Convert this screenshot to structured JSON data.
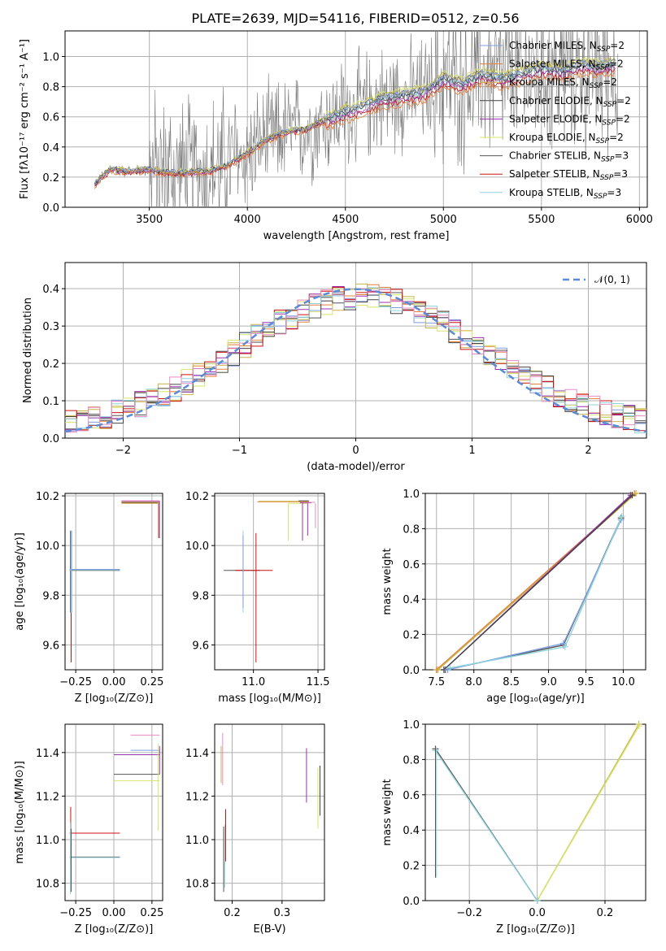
{
  "title": "PLATE=2639, MJD=54116, FIBERID=0512, z=0.56",
  "series_colors": {
    "Chabrier MILES": "#7f9fe0",
    "Salpeter MILES": "#e67f3a",
    "Kroupa MILES": "#c9b24a",
    "Chabrier ELODIE": "#444444",
    "Salpeter ELODIE": "#9b30b0",
    "Kroupa ELODIE": "#d6e46a",
    "Chabrier STELIB": "#555555",
    "Salpeter STELIB": "#cc1111",
    "Kroupa STELIB": "#8fd3dc",
    "Pink": "#e88cc4",
    "Observed": "#7a7a7a"
  },
  "chart_data": [
    {
      "id": "spectrum",
      "type": "line",
      "xlabel": "wavelength [Angstrom, rest frame]",
      "ylabel": "Flux [fλ10⁻¹⁷ erg cm⁻² s⁻¹ A⁻¹]",
      "xlim": [
        3070,
        6040
      ],
      "ylim": [
        0,
        1.17
      ],
      "xticks": [
        "3500",
        "4000",
        "4500",
        "5000",
        "5500",
        "6000"
      ],
      "yticks": [
        "0.0",
        "0.2",
        "0.4",
        "0.6",
        "0.8",
        "1.0"
      ],
      "legend": [
        {
          "label": "Chabrier MILES, N",
          "sub": "SSP",
          "tail": "=2"
        },
        {
          "label": "Salpeter MILES, N",
          "sub": "SSP",
          "tail": "=2"
        },
        {
          "label": "Kroupa MILES, N",
          "sub": "SSP",
          "tail": "=2"
        },
        {
          "label": "Chabrier ELODIE, N",
          "sub": "SSP",
          "tail": "=2"
        },
        {
          "label": "Salpeter ELODIE, N",
          "sub": "SSP",
          "tail": "=2"
        },
        {
          "label": "Kroupa ELODIE, N",
          "sub": "SSP",
          "tail": "=2"
        },
        {
          "label": "Chabrier STELIB, N",
          "sub": "SSP",
          "tail": "=3"
        },
        {
          "label": "Salpeter STELIB, N",
          "sub": "SSP",
          "tail": "=3"
        },
        {
          "label": "Kroupa STELIB, N",
          "sub": "SSP",
          "tail": "=3"
        }
      ],
      "legend_placement": "upper-right",
      "model_curve": {
        "x": [
          3220,
          3300,
          3400,
          3500,
          3600,
          3700,
          3800,
          3900,
          4000,
          4100,
          4200,
          4300,
          4400,
          4500,
          4600,
          4700,
          4800,
          4900,
          5000,
          5100,
          5200,
          5300,
          5400,
          5500,
          5600,
          5700,
          5800,
          5880
        ],
        "y": [
          0.15,
          0.25,
          0.24,
          0.25,
          0.23,
          0.23,
          0.24,
          0.28,
          0.36,
          0.45,
          0.5,
          0.52,
          0.58,
          0.63,
          0.67,
          0.72,
          0.74,
          0.76,
          0.85,
          0.82,
          0.88,
          0.85,
          0.88,
          0.92,
          0.9,
          0.94,
          0.93,
          0.95
        ]
      }
    },
    {
      "id": "residuals",
      "type": "line",
      "xlabel": "(data-model)/error",
      "ylabel": "Normed distribution",
      "xlim": [
        -2.5,
        2.5
      ],
      "ylim": [
        0,
        0.47
      ],
      "xticks": [
        "−2",
        "−1",
        "0",
        "1",
        "2"
      ],
      "yticks": [
        "0.0",
        "0.1",
        "0.2",
        "0.3",
        "0.4"
      ],
      "legend": [
        {
          "label": "𝒩(0, 1)"
        }
      ],
      "normal_curve": {
        "mean": 0,
        "sigma": 1
      }
    },
    {
      "id": "age-vs-Z",
      "type": "line",
      "xlabel": "Z [log₁₀(Z/Z⊙)]",
      "ylabel": "age  [log₁₀(age/yr)]",
      "xlim": [
        -0.32,
        0.32
      ],
      "ylim": [
        9.5,
        10.21
      ],
      "xticks": [
        "−0.25",
        "0.00",
        "0.25"
      ],
      "yticks": [
        "9.6",
        "9.8",
        "10.0",
        "10.2"
      ]
    },
    {
      "id": "age-vs-mass",
      "type": "line",
      "xlabel": "mass [log₁₀(M/M⊙)]",
      "ylabel": "",
      "xlim": [
        10.7,
        11.55
      ],
      "ylim": [
        9.5,
        10.21
      ],
      "xticks": [
        "11.0",
        "11.5"
      ],
      "yticks": [
        "9.6",
        "9.8",
        "10.0",
        "10.2"
      ]
    },
    {
      "id": "weight-vs-age",
      "type": "line",
      "xlabel": "age  [log₁₀(age/yr)]",
      "ylabel": "mass weight",
      "xlim": [
        7.35,
        10.3
      ],
      "ylim": [
        0,
        1
      ],
      "xticks": [
        "7.5",
        "8.0",
        "8.5",
        "9.0",
        "9.5",
        "10.0"
      ],
      "yticks": [
        "0.0",
        "0.2",
        "0.4",
        "0.6",
        "0.8",
        "1.0"
      ],
      "series": [
        {
          "color": "#e67f3a",
          "x": [
            7.5,
            10.15
          ],
          "y": [
            0.0,
            1.0
          ]
        },
        {
          "color": "#c9b24a",
          "x": [
            7.52,
            10.17
          ],
          "y": [
            0.0,
            1.0
          ]
        },
        {
          "color": "#9b30b0",
          "x": [
            7.6,
            10.1
          ],
          "y": [
            0.0,
            0.99
          ]
        },
        {
          "color": "#444444",
          "x": [
            7.6,
            10.12
          ],
          "y": [
            0.0,
            0.99
          ]
        },
        {
          "color": "#555555",
          "x": [
            7.62,
            9.2,
            9.97
          ],
          "y": [
            0.0,
            0.14,
            0.86
          ]
        },
        {
          "color": "#7f9fe0",
          "x": [
            7.65,
            9.2,
            9.97
          ],
          "y": [
            0.0,
            0.15,
            0.85
          ]
        },
        {
          "color": "#8fd3dc",
          "x": [
            7.68,
            9.22,
            9.98
          ],
          "y": [
            0.01,
            0.13,
            0.87
          ]
        }
      ]
    },
    {
      "id": "mass-vs-Z",
      "type": "line",
      "xlabel": "Z [log₁₀(Z/Z⊙)]",
      "ylabel": "mass [log₁₀(M/M⊙)]",
      "xlim": [
        -0.32,
        0.32
      ],
      "ylim": [
        10.72,
        11.53
      ],
      "xticks": [
        "−0.25",
        "0.00",
        "0.25"
      ],
      "yticks": [
        "10.8",
        "11.0",
        "11.2",
        "11.4"
      ]
    },
    {
      "id": "mass-vs-EBV",
      "type": "line",
      "xlabel": "E(B-V)",
      "ylabel": "",
      "xlim": [
        0.165,
        0.385
      ],
      "ylim": [
        10.72,
        11.53
      ],
      "xticks": [
        "0.2",
        "0.3"
      ],
      "yticks": [
        "10.8",
        "11.0",
        "11.2",
        "11.4"
      ]
    },
    {
      "id": "weight-vs-Z",
      "type": "line",
      "xlabel": "Z [log₁₀(Z/Z⊙)]",
      "ylabel": "mass weight",
      "xlim": [
        -0.33,
        0.32
      ],
      "ylim": [
        0,
        1
      ],
      "xticks": [
        "−0.2",
        "0.0",
        "0.2"
      ],
      "yticks": [
        "0.0",
        "0.2",
        "0.4",
        "0.6",
        "0.8",
        "1.0"
      ],
      "series": [
        {
          "color": "#c9b24a",
          "x": [
            0.0,
            0.3
          ],
          "y": [
            0.0,
            1.0
          ]
        },
        {
          "color": "#d6e46a",
          "x": [
            0.0,
            0.3
          ],
          "y": [
            0.0,
            0.99
          ]
        },
        {
          "color": "#555555",
          "x": [
            -0.3,
            0.0
          ],
          "y": [
            0.86,
            0.0
          ]
        },
        {
          "color": "#8fd3dc",
          "x": [
            -0.3,
            0.0
          ],
          "y": [
            0.85,
            0.0
          ]
        }
      ]
    }
  ]
}
